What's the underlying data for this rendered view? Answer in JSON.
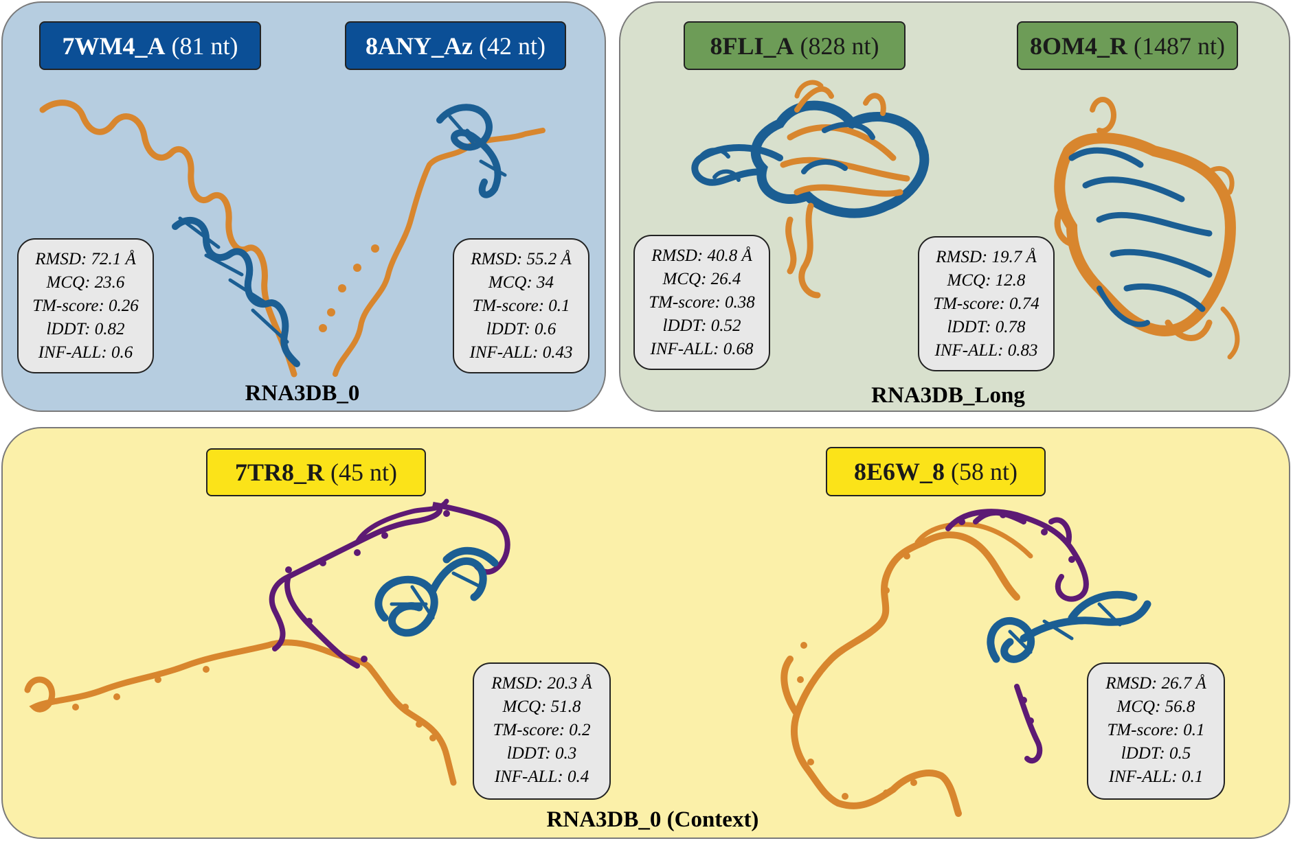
{
  "colors": {
    "panel_blue": "#b6cde0",
    "panel_green": "#d8e0cd",
    "panel_yellow": "#fbf0a9",
    "label_blue": "#0b4f96",
    "label_green": "#6d9c57",
    "label_yellow": "#fbe319",
    "strand_orange": "#d8862e",
    "strand_blue": "#1b5e93",
    "strand_purple": "#5d1a74"
  },
  "panels": [
    {
      "title": "RNA3DB_0",
      "examples": [
        {
          "id": "7WM4_A",
          "length": "(81 nt)",
          "metrics": [
            "RMSD: 72.1 Å",
            "MCQ: 23.6",
            "TM-score: 0.26",
            "lDDT: 0.82",
            "INF-ALL: 0.6"
          ]
        },
        {
          "id": "8ANY_Az",
          "length": "(42 nt)",
          "metrics": [
            "RMSD: 55.2 Å",
            "MCQ: 34",
            "TM-score: 0.1",
            "lDDT: 0.6",
            "INF-ALL: 0.43"
          ]
        }
      ]
    },
    {
      "title": "RNA3DB_Long",
      "examples": [
        {
          "id": "8FLI_A",
          "length": "(828 nt)",
          "metrics": [
            "RMSD: 40.8 Å",
            "MCQ: 26.4",
            "TM-score: 0.38",
            "lDDT: 0.52",
            "INF-ALL: 0.68"
          ]
        },
        {
          "id": "8OM4_R",
          "length": "(1487 nt)",
          "metrics": [
            "RMSD: 19.7 Å",
            "MCQ: 12.8",
            "TM-score: 0.74",
            "lDDT: 0.78",
            "INF-ALL: 0.83"
          ]
        }
      ]
    },
    {
      "title": "RNA3DB_0 (Context)",
      "examples": [
        {
          "id": "7TR8_R",
          "length": "(45 nt)",
          "metrics": [
            "RMSD: 20.3 Å",
            "MCQ: 51.8",
            "TM-score: 0.2",
            "lDDT: 0.3",
            "INF-ALL: 0.4"
          ]
        },
        {
          "id": "8E6W_8",
          "length": "(58 nt)",
          "metrics": [
            "RMSD: 26.7 Å",
            "MCQ: 56.8",
            "TM-score: 0.1",
            "lDDT: 0.5",
            "INF-ALL: 0.1"
          ]
        }
      ]
    }
  ]
}
